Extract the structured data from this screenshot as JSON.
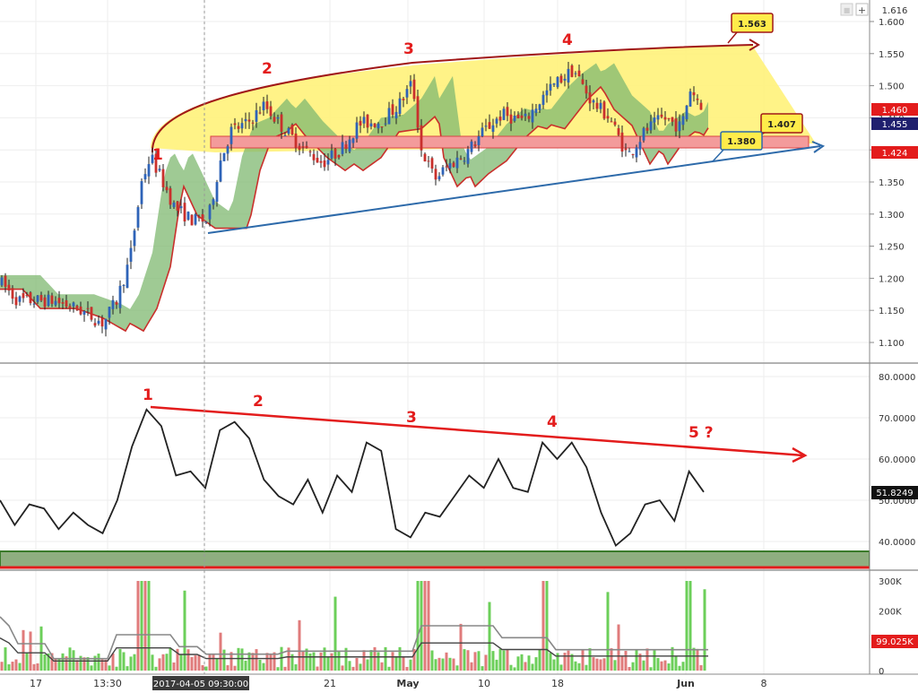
{
  "toolbar": {
    "add": "+",
    "close": "■",
    "top_price": "1.616"
  },
  "chart_data": [
    {
      "type": "candlestick",
      "title": "",
      "price_axis": {
        "ticks": [
          "1.600",
          "1.550",
          "1.500",
          "1.450",
          "1.400",
          "1.350",
          "1.300",
          "1.250",
          "1.200",
          "1.150",
          "1.100"
        ],
        "ylim": [
          1.08,
          1.62
        ]
      },
      "price_badges": [
        {
          "label": "1.460",
          "color": "#e31c1c"
        },
        {
          "label": "1.455",
          "color": "#1f1f6e"
        },
        {
          "label": "1.424",
          "color": "#e31c1c"
        }
      ],
      "callouts": [
        {
          "label": "1.563"
        },
        {
          "label": "1.407"
        },
        {
          "label": "1.380"
        }
      ],
      "wave_labels": [
        "1",
        "2",
        "3",
        "4"
      ],
      "levels": {
        "support_zone": [
          1.422,
          1.438
        ],
        "band_colors": {
          "zone": "#f39b9b",
          "wedge": "#fff27a",
          "cloud": "#7fb870",
          "trend": "#2d6aaa",
          "upper_curve": "#a01818"
        }
      }
    },
    {
      "type": "line",
      "title": "",
      "axis": {
        "ticks": [
          "80.0000",
          "70.0000",
          "60.0000",
          "50.0000",
          "40.0000"
        ],
        "ylim": [
          33,
          82
        ]
      },
      "current_value": "51.8249",
      "wave_labels": [
        "1",
        "2",
        "3",
        "4",
        "5 ?"
      ],
      "sample_values": [
        50,
        44,
        49,
        48,
        43,
        47,
        44,
        42,
        50,
        63,
        72,
        68,
        56,
        57,
        53,
        67,
        69,
        65,
        55,
        51,
        49,
        55,
        47,
        56,
        52,
        64,
        62,
        43,
        41,
        47,
        46,
        51,
        56,
        53,
        60,
        53,
        52,
        64,
        60,
        64,
        58,
        47,
        39,
        42,
        49,
        50,
        45,
        57,
        52
      ]
    },
    {
      "type": "bar",
      "title": "",
      "axis": {
        "ticks": [
          "300K",
          "200K",
          "100K",
          "0"
        ]
      },
      "current_value": "99.025K",
      "colors": {
        "up": "#6ccf5a",
        "down": "#e07b7b",
        "ma": "#888888"
      }
    }
  ],
  "x_axis": {
    "ticks": [
      "17",
      "13:30",
      "2017-04-05 09:30:00",
      "21",
      "May",
      "10",
      "18",
      "Jun",
      "8"
    ]
  }
}
